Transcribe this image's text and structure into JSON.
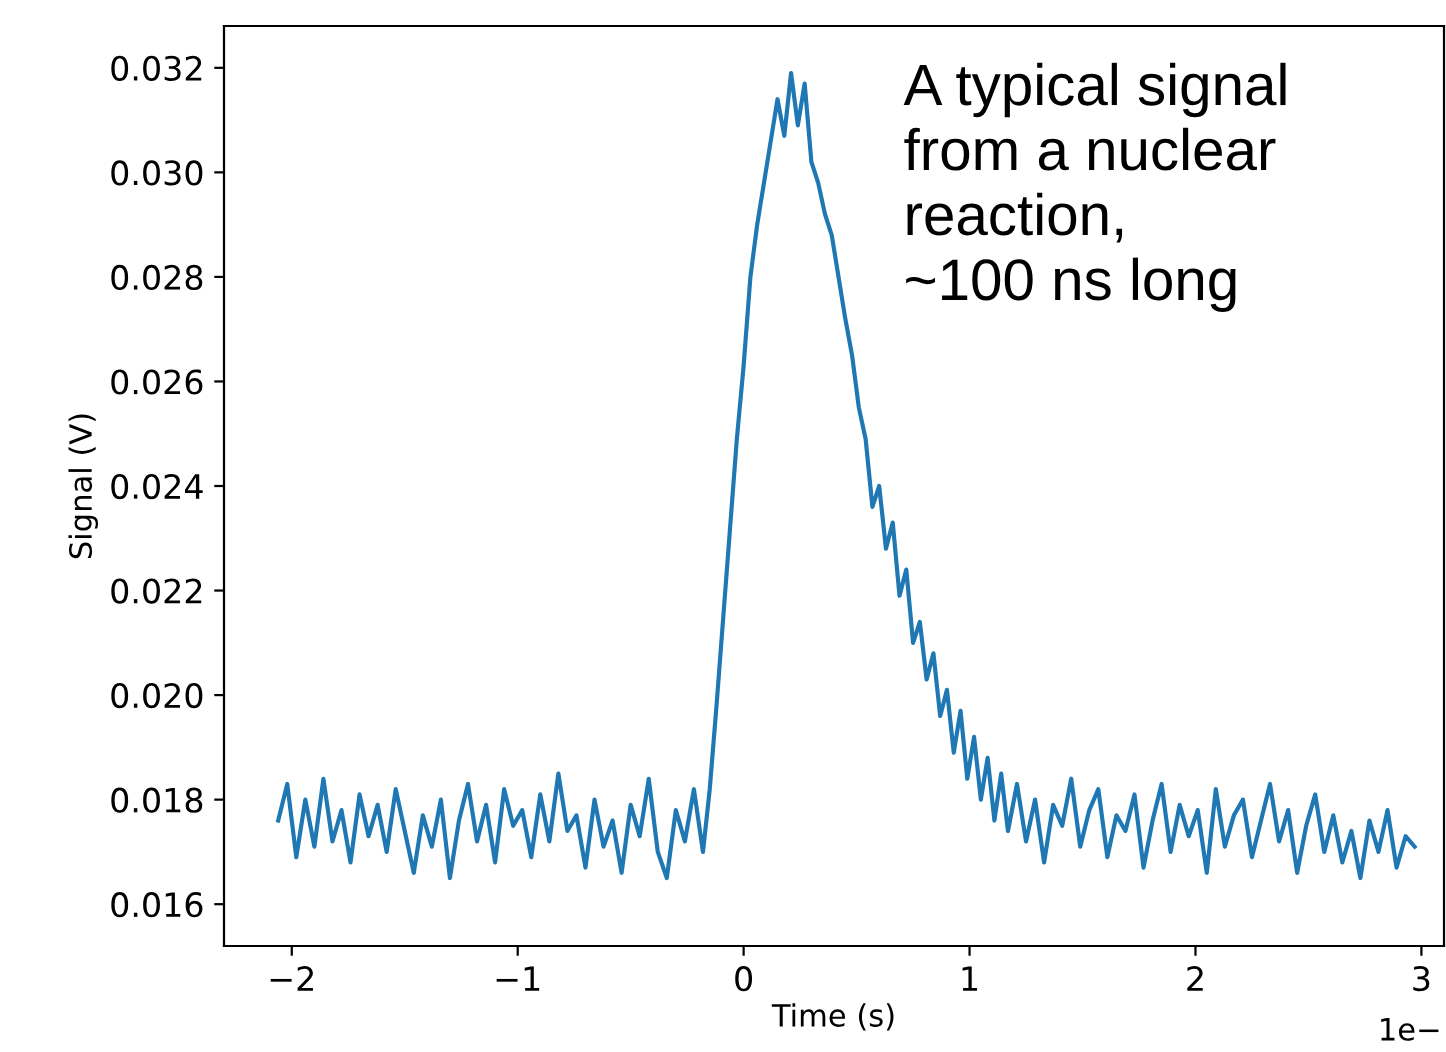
{
  "chart_data": {
    "type": "line",
    "xlabel": "Time (s)",
    "ylabel": "Signal (V)",
    "xlim": [
      -2.3,
      3.1
    ],
    "xticks": [
      {
        "value": -2,
        "label": "−2"
      },
      {
        "value": -1,
        "label": "−1"
      },
      0,
      1,
      2,
      3
    ],
    "ylim": [
      0.0152,
      0.0328
    ],
    "yticks": [
      {
        "value": 0.016,
        "label": "0.016"
      },
      {
        "value": 0.018,
        "label": "0.018"
      },
      {
        "value": 0.02,
        "label": "0.020"
      },
      {
        "value": 0.022,
        "label": "0.022"
      },
      {
        "value": 0.024,
        "label": "0.024"
      },
      {
        "value": 0.026,
        "label": "0.026"
      },
      {
        "value": 0.028,
        "label": "0.028"
      },
      {
        "value": 0.03,
        "label": "0.030"
      },
      {
        "value": 0.032,
        "label": "0.032"
      }
    ],
    "annotations": [
      "A typical signal\nfrom a nuclear\nreaction,\n~100 ns long",
      "1e−"
    ],
    "series": [
      {
        "color": "#1f77b4",
        "x": [
          -2.06,
          -2.02,
          -1.98,
          -1.94,
          -1.9,
          -1.86,
          -1.82,
          -1.78,
          -1.74,
          -1.7,
          -1.66,
          -1.62,
          -1.58,
          -1.54,
          -1.5,
          -1.46,
          -1.42,
          -1.38,
          -1.34,
          -1.3,
          -1.26,
          -1.22,
          -1.18,
          -1.14,
          -1.1,
          -1.06,
          -1.02,
          -0.98,
          -0.94,
          -0.9,
          -0.86,
          -0.82,
          -0.78,
          -0.74,
          -0.7,
          -0.66,
          -0.62,
          -0.58,
          -0.54,
          -0.5,
          -0.46,
          -0.42,
          -0.38,
          -0.34,
          -0.3,
          -0.26,
          -0.22,
          -0.18,
          -0.15,
          -0.12,
          -0.09,
          -0.06,
          -0.03,
          0.0,
          0.03,
          0.06,
          0.09,
          0.12,
          0.15,
          0.18,
          0.21,
          0.24,
          0.27,
          0.3,
          0.33,
          0.36,
          0.39,
          0.42,
          0.45,
          0.48,
          0.51,
          0.54,
          0.57,
          0.6,
          0.63,
          0.66,
          0.69,
          0.72,
          0.75,
          0.78,
          0.81,
          0.84,
          0.87,
          0.9,
          0.93,
          0.96,
          0.99,
          1.02,
          1.05,
          1.08,
          1.11,
          1.14,
          1.17,
          1.21,
          1.25,
          1.29,
          1.33,
          1.37,
          1.41,
          1.45,
          1.49,
          1.53,
          1.57,
          1.61,
          1.65,
          1.69,
          1.73,
          1.77,
          1.81,
          1.85,
          1.89,
          1.93,
          1.97,
          2.01,
          2.05,
          2.09,
          2.13,
          2.17,
          2.21,
          2.25,
          2.29,
          2.33,
          2.37,
          2.41,
          2.45,
          2.49,
          2.53,
          2.57,
          2.61,
          2.65,
          2.69,
          2.73,
          2.77,
          2.81,
          2.85,
          2.89,
          2.93,
          2.97
        ],
        "values": [
          0.0176,
          0.0183,
          0.0169,
          0.018,
          0.0171,
          0.0184,
          0.0172,
          0.0178,
          0.0168,
          0.0181,
          0.0173,
          0.0179,
          0.017,
          0.0182,
          0.0174,
          0.0166,
          0.0177,
          0.0171,
          0.018,
          0.0165,
          0.0176,
          0.0183,
          0.0172,
          0.0179,
          0.0168,
          0.0182,
          0.0175,
          0.0178,
          0.0169,
          0.0181,
          0.0172,
          0.0185,
          0.0174,
          0.0177,
          0.0167,
          0.018,
          0.0171,
          0.0176,
          0.0166,
          0.0179,
          0.0173,
          0.0184,
          0.017,
          0.0165,
          0.0178,
          0.0172,
          0.0182,
          0.017,
          0.0182,
          0.0198,
          0.0215,
          0.0232,
          0.0249,
          0.0263,
          0.028,
          0.029,
          0.0298,
          0.0306,
          0.0314,
          0.0307,
          0.0319,
          0.0309,
          0.0317,
          0.0302,
          0.0298,
          0.0292,
          0.0288,
          0.028,
          0.0272,
          0.0265,
          0.0255,
          0.0249,
          0.0236,
          0.024,
          0.0228,
          0.0233,
          0.0219,
          0.0224,
          0.021,
          0.0214,
          0.0203,
          0.0208,
          0.0196,
          0.0201,
          0.0189,
          0.0197,
          0.0184,
          0.0192,
          0.018,
          0.0188,
          0.0176,
          0.0185,
          0.0174,
          0.0183,
          0.0172,
          0.018,
          0.0168,
          0.0179,
          0.0175,
          0.0184,
          0.0171,
          0.0178,
          0.0182,
          0.0169,
          0.0177,
          0.0174,
          0.0181,
          0.0167,
          0.0176,
          0.0183,
          0.017,
          0.0179,
          0.0173,
          0.0178,
          0.0166,
          0.0182,
          0.0171,
          0.0177,
          0.018,
          0.0169,
          0.0176,
          0.0183,
          0.0172,
          0.0178,
          0.0166,
          0.0175,
          0.0181,
          0.017,
          0.0177,
          0.0168,
          0.0174,
          0.0165,
          0.0176,
          0.017,
          0.0178,
          0.0167,
          0.0173,
          0.0171
        ]
      }
    ]
  }
}
